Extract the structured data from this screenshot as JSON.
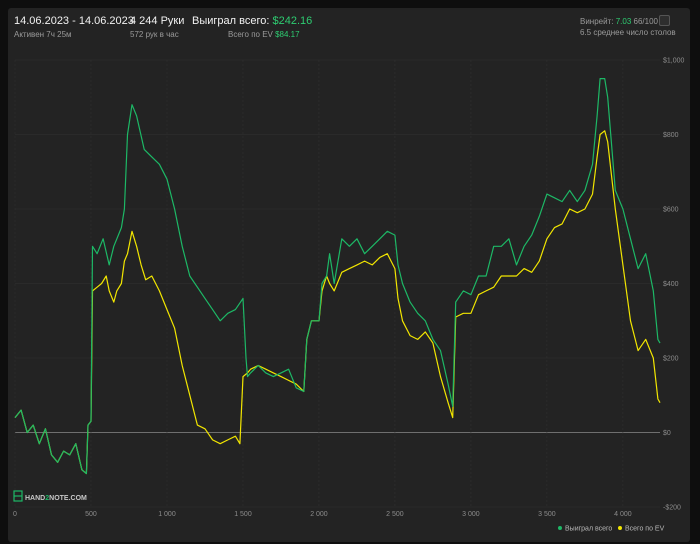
{
  "header": {
    "date_range": "14.06.2023 - 14.06.2023",
    "active_time": "Активен 7ч 25м",
    "hands": "4 244 Руки",
    "hands_per_hour": "572 рук в час",
    "won_label": "Выиграл всего:",
    "won_value": "$242.16",
    "ev_label": "Всего по EV",
    "ev_value": "$84.17",
    "winrate_label": "Винрейт:",
    "winrate_value": "7.03",
    "winrate_hands": "66/100",
    "avg_tables": "6.5 среднее число столов"
  },
  "logo": {
    "part1": "HAND",
    "part2": "2",
    "part3": "NOTE.COM"
  },
  "colors": {
    "won": "#1db866",
    "ev": "#f2e600",
    "grid": "#333333",
    "zero": "#8a8a8a"
  },
  "chart_data": {
    "type": "line",
    "x_range": [
      0,
      4244
    ],
    "ylim": [
      -200,
      1000
    ],
    "x_ticks": [
      {
        "v": 0,
        "label": "0"
      },
      {
        "v": 500,
        "label": "500"
      },
      {
        "v": 1000,
        "label": "1 000"
      },
      {
        "v": 1500,
        "label": "1 500"
      },
      {
        "v": 2000,
        "label": "2 000"
      },
      {
        "v": 2500,
        "label": "2 500"
      },
      {
        "v": 3000,
        "label": "3 000"
      },
      {
        "v": 3500,
        "label": "3 500"
      },
      {
        "v": 4000,
        "label": "4 000"
      }
    ],
    "y_ticks": [
      {
        "v": -200,
        "label": "-$200"
      },
      {
        "v": 0,
        "label": "$0"
      },
      {
        "v": 200,
        "label": "$200"
      },
      {
        "v": 400,
        "label": "$400"
      },
      {
        "v": 600,
        "label": "$600"
      },
      {
        "v": 800,
        "label": "$800"
      },
      {
        "v": 1000,
        "label": "$1,000"
      }
    ],
    "grid": true,
    "legend_position": "bottom-right",
    "series": [
      {
        "name": "Выиграл всего",
        "color": "#1db866",
        "points": [
          [
            0,
            40
          ],
          [
            40,
            60
          ],
          [
            80,
            0
          ],
          [
            120,
            20
          ],
          [
            160,
            -30
          ],
          [
            200,
            10
          ],
          [
            240,
            -60
          ],
          [
            280,
            -80
          ],
          [
            320,
            -50
          ],
          [
            360,
            -60
          ],
          [
            400,
            -30
          ],
          [
            440,
            -100
          ],
          [
            470,
            -110
          ],
          [
            480,
            20
          ],
          [
            500,
            30
          ],
          [
            510,
            500
          ],
          [
            540,
            480
          ],
          [
            580,
            520
          ],
          [
            620,
            450
          ],
          [
            650,
            500
          ],
          [
            700,
            550
          ],
          [
            720,
            600
          ],
          [
            740,
            800
          ],
          [
            770,
            880
          ],
          [
            800,
            850
          ],
          [
            850,
            760
          ],
          [
            900,
            740
          ],
          [
            950,
            720
          ],
          [
            1000,
            680
          ],
          [
            1050,
            600
          ],
          [
            1100,
            500
          ],
          [
            1150,
            420
          ],
          [
            1200,
            390
          ],
          [
            1250,
            360
          ],
          [
            1300,
            330
          ],
          [
            1350,
            300
          ],
          [
            1400,
            320
          ],
          [
            1450,
            330
          ],
          [
            1500,
            360
          ],
          [
            1520,
            200
          ],
          [
            1530,
            150
          ],
          [
            1550,
            160
          ],
          [
            1600,
            180
          ],
          [
            1650,
            160
          ],
          [
            1700,
            150
          ],
          [
            1750,
            160
          ],
          [
            1800,
            170
          ],
          [
            1850,
            120
          ],
          [
            1900,
            110
          ],
          [
            1920,
            250
          ],
          [
            1950,
            300
          ],
          [
            2000,
            300
          ],
          [
            2020,
            400
          ],
          [
            2050,
            420
          ],
          [
            2070,
            480
          ],
          [
            2100,
            400
          ],
          [
            2150,
            520
          ],
          [
            2200,
            500
          ],
          [
            2250,
            520
          ],
          [
            2300,
            480
          ],
          [
            2350,
            500
          ],
          [
            2400,
            520
          ],
          [
            2450,
            540
          ],
          [
            2500,
            530
          ],
          [
            2520,
            450
          ],
          [
            2550,
            400
          ],
          [
            2600,
            350
          ],
          [
            2650,
            320
          ],
          [
            2700,
            300
          ],
          [
            2750,
            250
          ],
          [
            2800,
            220
          ],
          [
            2850,
            130
          ],
          [
            2880,
            70
          ],
          [
            2900,
            350
          ],
          [
            2950,
            380
          ],
          [
            3000,
            370
          ],
          [
            3050,
            420
          ],
          [
            3100,
            420
          ],
          [
            3150,
            500
          ],
          [
            3200,
            500
          ],
          [
            3250,
            520
          ],
          [
            3300,
            450
          ],
          [
            3350,
            500
          ],
          [
            3400,
            530
          ],
          [
            3450,
            580
          ],
          [
            3500,
            640
          ],
          [
            3550,
            630
          ],
          [
            3600,
            620
          ],
          [
            3650,
            650
          ],
          [
            3700,
            620
          ],
          [
            3750,
            650
          ],
          [
            3800,
            720
          ],
          [
            3830,
            850
          ],
          [
            3850,
            950
          ],
          [
            3880,
            950
          ],
          [
            3900,
            900
          ],
          [
            3950,
            650
          ],
          [
            4000,
            600
          ],
          [
            4050,
            520
          ],
          [
            4100,
            440
          ],
          [
            4150,
            480
          ],
          [
            4200,
            380
          ],
          [
            4230,
            250
          ],
          [
            4244,
            240
          ]
        ]
      },
      {
        "name": "Всего по EV",
        "color": "#f2e600",
        "points": [
          [
            0,
            40
          ],
          [
            40,
            60
          ],
          [
            80,
            0
          ],
          [
            120,
            20
          ],
          [
            160,
            -30
          ],
          [
            200,
            10
          ],
          [
            240,
            -60
          ],
          [
            280,
            -80
          ],
          [
            320,
            -50
          ],
          [
            360,
            -60
          ],
          [
            400,
            -30
          ],
          [
            440,
            -100
          ],
          [
            470,
            -110
          ],
          [
            480,
            20
          ],
          [
            500,
            30
          ],
          [
            510,
            380
          ],
          [
            540,
            390
          ],
          [
            570,
            400
          ],
          [
            600,
            420
          ],
          [
            620,
            380
          ],
          [
            650,
            350
          ],
          [
            670,
            380
          ],
          [
            700,
            400
          ],
          [
            720,
            460
          ],
          [
            740,
            480
          ],
          [
            770,
            540
          ],
          [
            800,
            500
          ],
          [
            830,
            450
          ],
          [
            860,
            410
          ],
          [
            900,
            420
          ],
          [
            950,
            380
          ],
          [
            1000,
            330
          ],
          [
            1050,
            280
          ],
          [
            1100,
            180
          ],
          [
            1150,
            100
          ],
          [
            1200,
            20
          ],
          [
            1250,
            10
          ],
          [
            1300,
            -20
          ],
          [
            1350,
            -30
          ],
          [
            1400,
            -20
          ],
          [
            1450,
            -10
          ],
          [
            1480,
            -30
          ],
          [
            1500,
            150
          ],
          [
            1530,
            160
          ],
          [
            1550,
            170
          ],
          [
            1600,
            180
          ],
          [
            1650,
            170
          ],
          [
            1700,
            160
          ],
          [
            1750,
            150
          ],
          [
            1800,
            140
          ],
          [
            1850,
            130
          ],
          [
            1900,
            110
          ],
          [
            1920,
            250
          ],
          [
            1950,
            300
          ],
          [
            2000,
            300
          ],
          [
            2020,
            380
          ],
          [
            2050,
            420
          ],
          [
            2070,
            400
          ],
          [
            2100,
            380
          ],
          [
            2150,
            430
          ],
          [
            2200,
            440
          ],
          [
            2250,
            450
          ],
          [
            2300,
            460
          ],
          [
            2350,
            450
          ],
          [
            2400,
            470
          ],
          [
            2450,
            480
          ],
          [
            2500,
            440
          ],
          [
            2520,
            360
          ],
          [
            2550,
            300
          ],
          [
            2600,
            260
          ],
          [
            2650,
            250
          ],
          [
            2700,
            270
          ],
          [
            2750,
            240
          ],
          [
            2800,
            150
          ],
          [
            2850,
            80
          ],
          [
            2880,
            40
          ],
          [
            2900,
            310
          ],
          [
            2950,
            320
          ],
          [
            3000,
            320
          ],
          [
            3050,
            370
          ],
          [
            3100,
            380
          ],
          [
            3150,
            390
          ],
          [
            3200,
            420
          ],
          [
            3250,
            420
          ],
          [
            3300,
            420
          ],
          [
            3350,
            440
          ],
          [
            3400,
            430
          ],
          [
            3450,
            460
          ],
          [
            3500,
            520
          ],
          [
            3550,
            550
          ],
          [
            3600,
            560
          ],
          [
            3650,
            600
          ],
          [
            3700,
            590
          ],
          [
            3750,
            600
          ],
          [
            3800,
            640
          ],
          [
            3830,
            740
          ],
          [
            3850,
            800
          ],
          [
            3880,
            810
          ],
          [
            3900,
            780
          ],
          [
            3950,
            600
          ],
          [
            4000,
            450
          ],
          [
            4050,
            300
          ],
          [
            4100,
            220
          ],
          [
            4150,
            250
          ],
          [
            4200,
            200
          ],
          [
            4230,
            90
          ],
          [
            4244,
            80
          ]
        ]
      }
    ]
  }
}
